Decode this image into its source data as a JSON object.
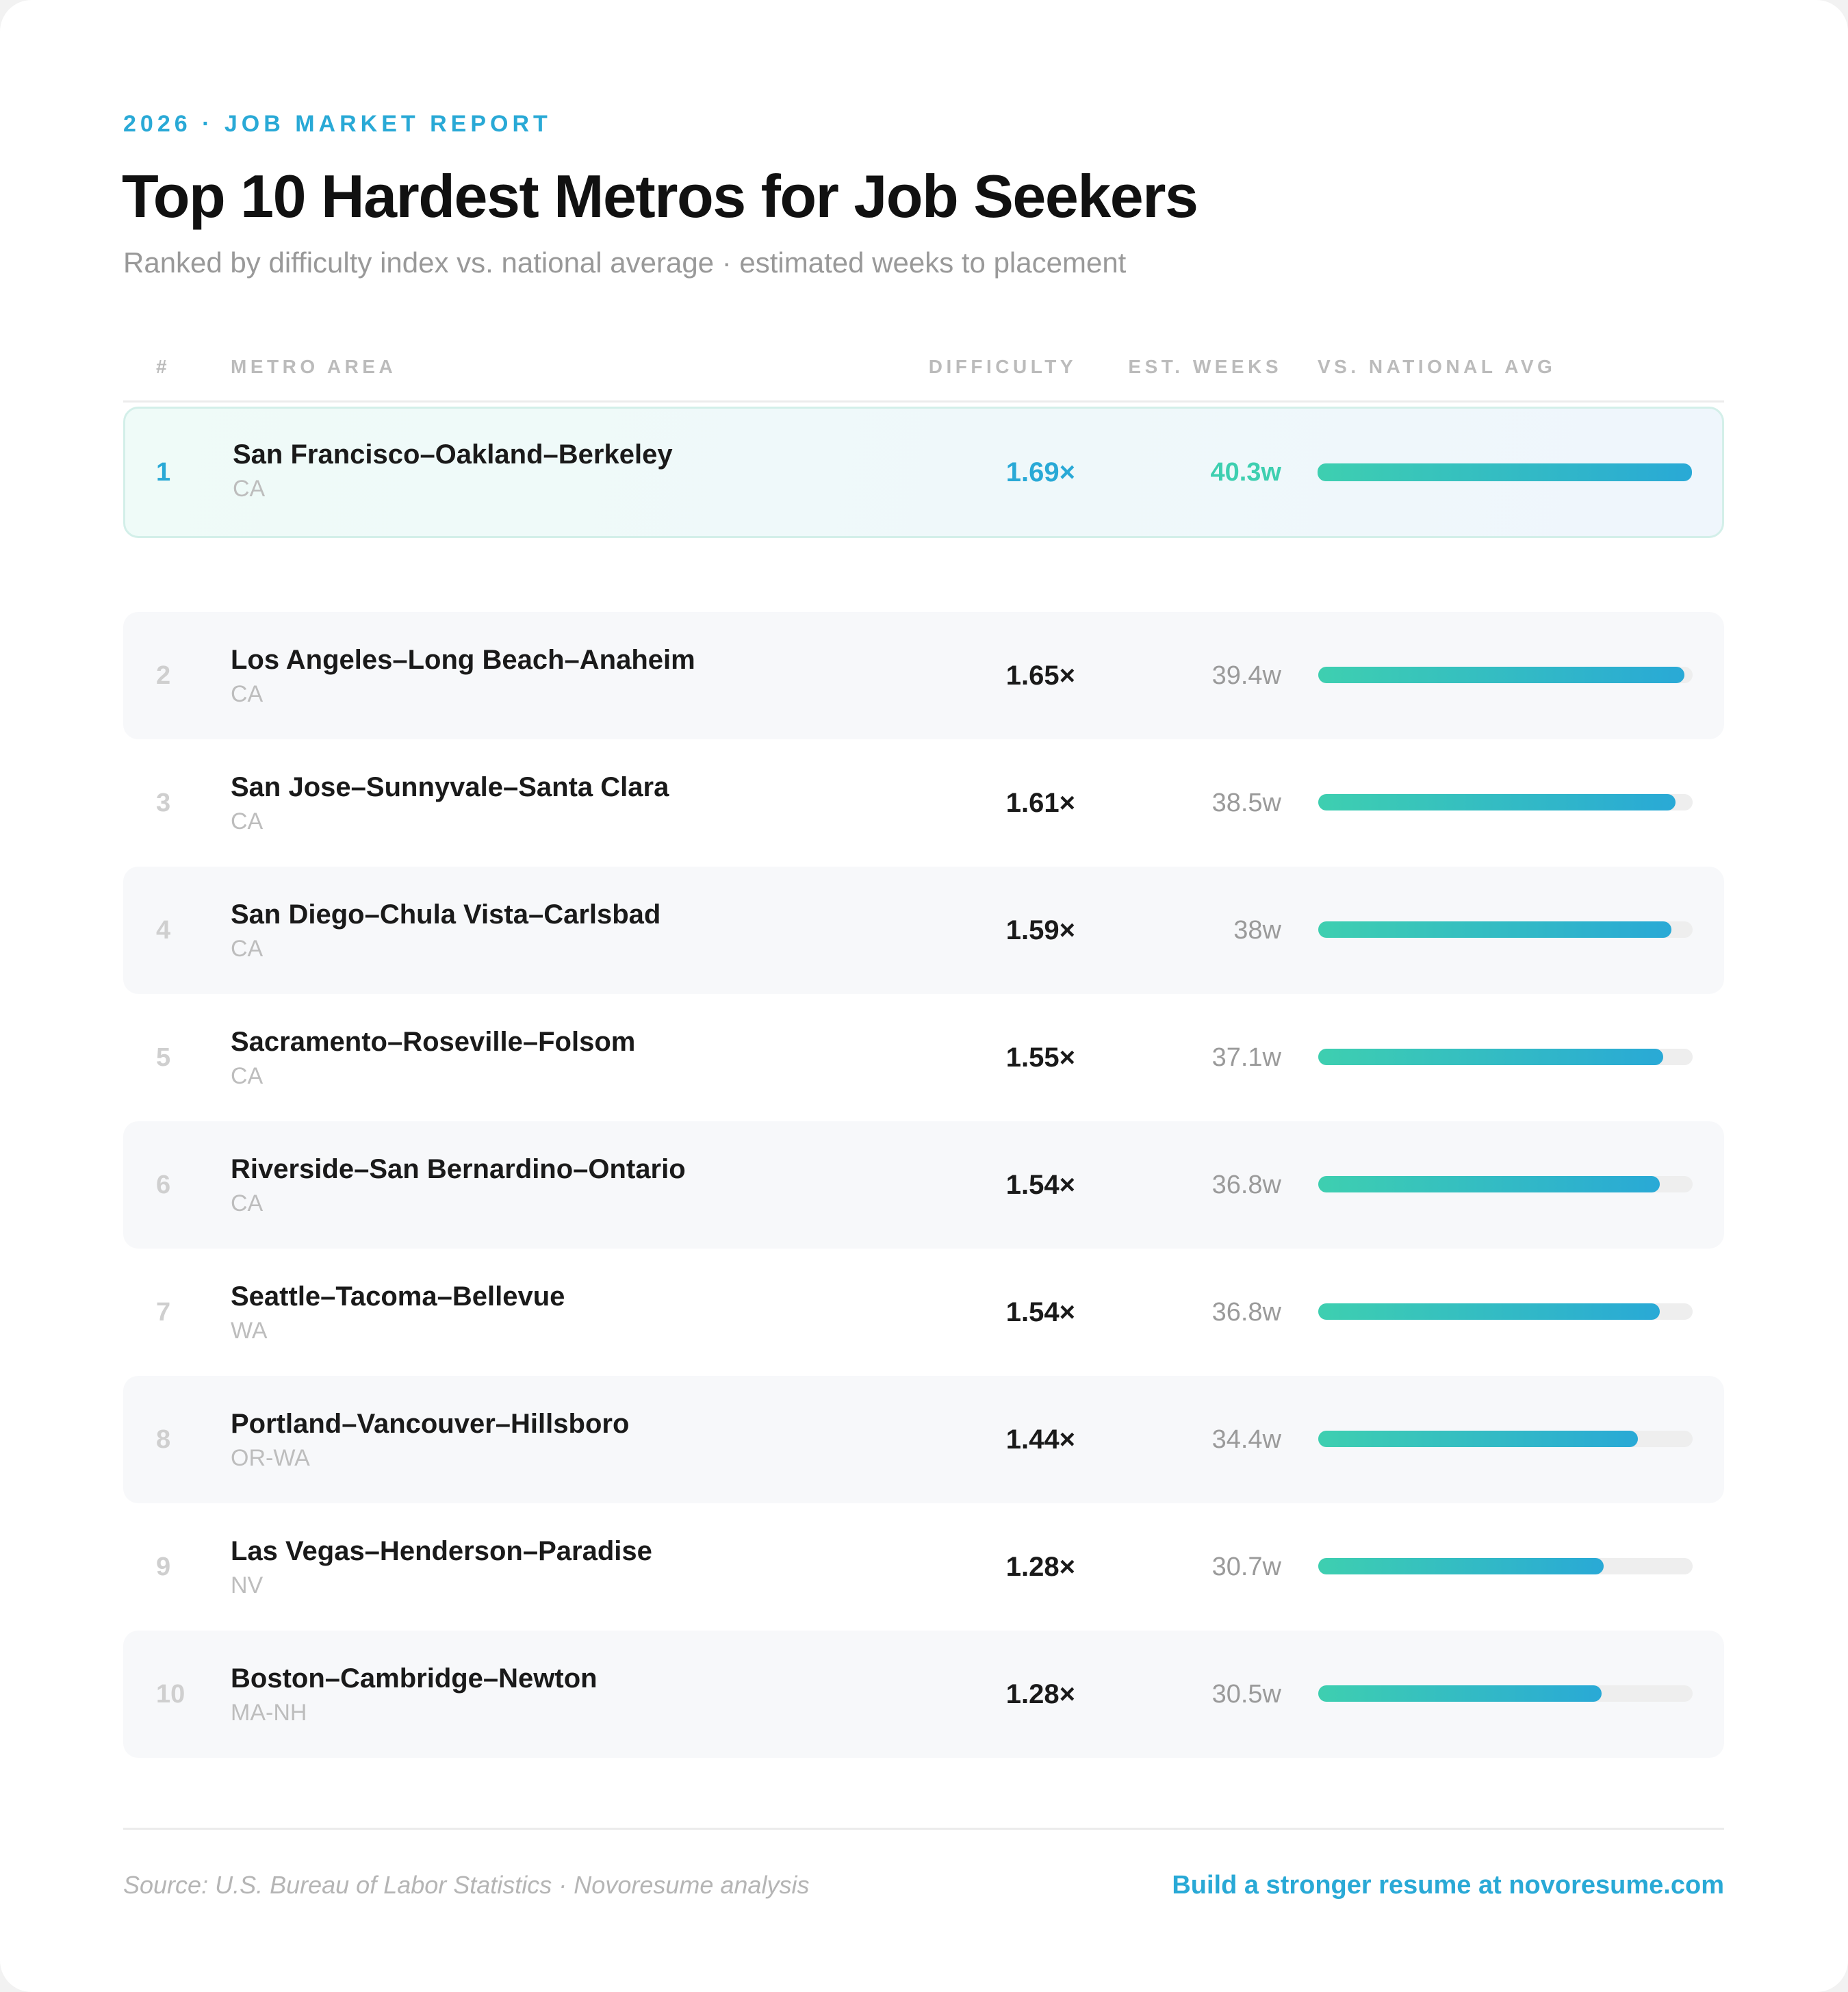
{
  "header": {
    "eyebrow": "2026 · JOB MARKET REPORT",
    "title": "Top 10 Hardest Metros for Job Seekers",
    "subtitle": "Ranked by difficulty index vs. national average · estimated weeks to placement"
  },
  "table": {
    "columns": {
      "rank": "#",
      "metro": "METRO AREA",
      "difficulty": "DIFFICULTY",
      "weeks": "EST. WEEKS",
      "vs_avg": "VS. NATIONAL AVG"
    },
    "rows": [
      {
        "rank": "1",
        "name": "San Francisco–Oakland–Berkeley",
        "state": "CA",
        "difficulty": "1.69×",
        "weeks": "40.3w",
        "bar_pct": 100
      },
      {
        "rank": "2",
        "name": "Los Angeles–Long Beach–Anaheim",
        "state": "CA",
        "difficulty": "1.65×",
        "weeks": "39.4w",
        "bar_pct": 97.8
      },
      {
        "rank": "3",
        "name": "San Jose–Sunnyvale–Santa Clara",
        "state": "CA",
        "difficulty": "1.61×",
        "weeks": "38.5w",
        "bar_pct": 95.5
      },
      {
        "rank": "4",
        "name": "San Diego–Chula Vista–Carlsbad",
        "state": "CA",
        "difficulty": "1.59×",
        "weeks": "38w",
        "bar_pct": 94.3
      },
      {
        "rank": "5",
        "name": "Sacramento–Roseville–Folsom",
        "state": "CA",
        "difficulty": "1.55×",
        "weeks": "37.1w",
        "bar_pct": 92.1
      },
      {
        "rank": "6",
        "name": "Riverside–San Bernardino–Ontario",
        "state": "CA",
        "difficulty": "1.54×",
        "weeks": "36.8w",
        "bar_pct": 91.3
      },
      {
        "rank": "7",
        "name": "Seattle–Tacoma–Bellevue",
        "state": "WA",
        "difficulty": "1.54×",
        "weeks": "36.8w",
        "bar_pct": 91.3
      },
      {
        "rank": "8",
        "name": "Portland–Vancouver–Hillsboro",
        "state": "OR-WA",
        "difficulty": "1.44×",
        "weeks": "34.4w",
        "bar_pct": 85.4
      },
      {
        "rank": "9",
        "name": "Las Vegas–Henderson–Paradise",
        "state": "NV",
        "difficulty": "1.28×",
        "weeks": "30.7w",
        "bar_pct": 76.2
      },
      {
        "rank": "10",
        "name": "Boston–Cambridge–Newton",
        "state": "MA-NH",
        "difficulty": "1.28×",
        "weeks": "30.5w",
        "bar_pct": 75.7
      }
    ]
  },
  "footer": {
    "source": "Source: U.S. Bureau of Labor Statistics · Novoresume analysis",
    "cta": "Build a stronger resume at novoresume.com"
  },
  "colors": {
    "accent_blue": "#29a9d6",
    "accent_teal": "#3ecfb0",
    "bar_gradient": [
      "#3ecfb0",
      "#29a9d6"
    ],
    "track": "#eeeeee",
    "alt_row": "#f7f8fa"
  },
  "chart_data": {
    "type": "bar",
    "title": "Top 10 Hardest Metros for Job Seekers",
    "subtitle": "Ranked by difficulty index vs. national average · estimated weeks to placement",
    "orientation": "horizontal",
    "categories": [
      "San Francisco–Oakland–Berkeley",
      "Los Angeles–Long Beach–Anaheim",
      "San Jose–Sunnyvale–Santa Clara",
      "San Diego–Chula Vista–Carlsbad",
      "Sacramento–Roseville–Folsom",
      "Riverside–San Bernardino–Ontario",
      "Seattle–Tacoma–Bellevue",
      "Portland–Vancouver–Hillsboro",
      "Las Vegas–Henderson–Paradise",
      "Boston–Cambridge–Newton"
    ],
    "states": [
      "CA",
      "CA",
      "CA",
      "CA",
      "CA",
      "CA",
      "WA",
      "OR-WA",
      "NV",
      "MA-NH"
    ],
    "series": [
      {
        "name": "Difficulty (× national avg)",
        "values": [
          1.69,
          1.65,
          1.61,
          1.59,
          1.55,
          1.54,
          1.54,
          1.44,
          1.28,
          1.28
        ]
      },
      {
        "name": "Est. weeks to placement",
        "values": [
          40.3,
          39.4,
          38.5,
          38.0,
          37.1,
          36.8,
          36.8,
          34.4,
          30.7,
          30.5
        ]
      }
    ],
    "bar_series": "Est. weeks to placement",
    "xlabel": "VS. NATIONAL AVG",
    "ylabel": "METRO AREA",
    "legend": "none",
    "grid": false
  }
}
